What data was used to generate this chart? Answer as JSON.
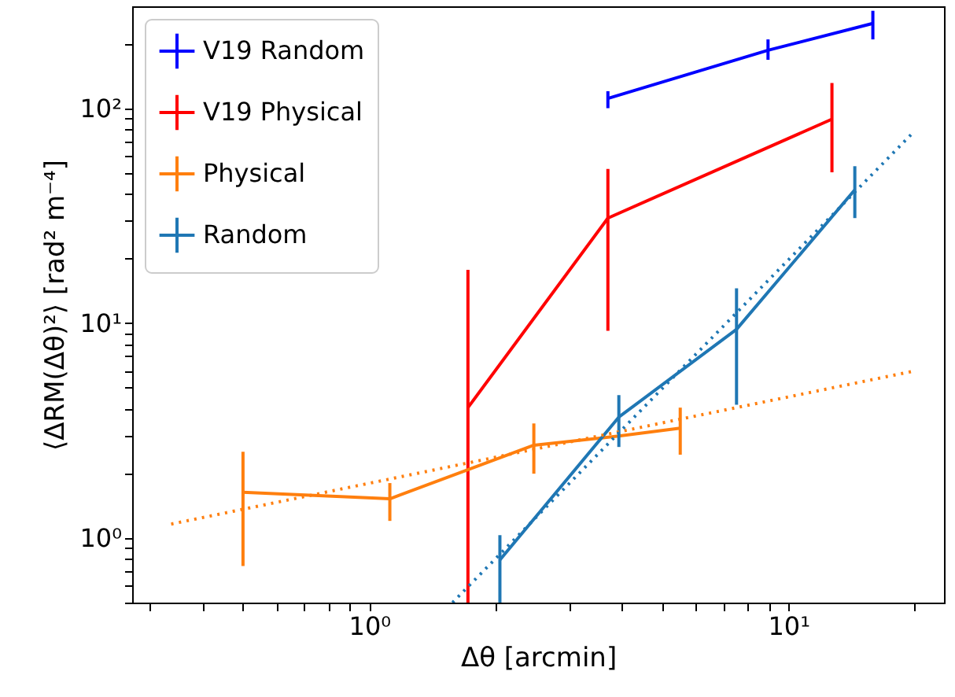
{
  "chart_data": {
    "type": "line",
    "xlabel": "Δθ [arcmin]",
    "ylabel": "⟨ΔRM(Δθ)²⟩ [rad² m⁻⁴]",
    "log": "xy",
    "grid": false,
    "legend": "top left",
    "xlim": [
      0.272,
      23.5
    ],
    "ylim": [
      0.5,
      298
    ],
    "xticks": [
      {
        "value": 0.3,
        "label": null
      },
      {
        "value": 0.4,
        "label": null
      },
      {
        "value": 0.5,
        "label": null
      },
      {
        "value": 0.6,
        "label": null
      },
      {
        "value": 0.7,
        "label": null
      },
      {
        "value": 0.8,
        "label": null
      },
      {
        "value": 0.9,
        "label": null
      },
      {
        "value": 1,
        "label": "10⁰"
      },
      {
        "value": 2,
        "label": null
      },
      {
        "value": 3,
        "label": null
      },
      {
        "value": 4,
        "label": null
      },
      {
        "value": 5,
        "label": null
      },
      {
        "value": 6,
        "label": null
      },
      {
        "value": 7,
        "label": null
      },
      {
        "value": 8,
        "label": null
      },
      {
        "value": 9,
        "label": null
      },
      {
        "value": 10,
        "label": "10¹"
      },
      {
        "value": 20,
        "label": null
      }
    ],
    "yticks": [
      {
        "value": 0.5,
        "label": null
      },
      {
        "value": 0.6,
        "label": null
      },
      {
        "value": 0.7,
        "label": null
      },
      {
        "value": 0.8,
        "label": null
      },
      {
        "value": 0.9,
        "label": null
      },
      {
        "value": 1,
        "label": "10⁰"
      },
      {
        "value": 2,
        "label": null
      },
      {
        "value": 3,
        "label": null
      },
      {
        "value": 4,
        "label": null
      },
      {
        "value": 5,
        "label": null
      },
      {
        "value": 6,
        "label": null
      },
      {
        "value": 7,
        "label": null
      },
      {
        "value": 8,
        "label": null
      },
      {
        "value": 9,
        "label": null
      },
      {
        "value": 10,
        "label": "10¹"
      },
      {
        "value": 20,
        "label": null
      },
      {
        "value": 30,
        "label": null
      },
      {
        "value": 40,
        "label": null
      },
      {
        "value": 50,
        "label": null
      },
      {
        "value": 60,
        "label": null
      },
      {
        "value": 70,
        "label": null
      },
      {
        "value": 80,
        "label": null
      },
      {
        "value": 90,
        "label": null
      },
      {
        "value": 100,
        "label": "10²"
      },
      {
        "value": 200,
        "label": null
      }
    ],
    "series": [
      {
        "name": "V19 Random",
        "color": "#0000ff",
        "x": [
          3.71,
          8.94,
          15.9
        ],
        "values": [
          111,
          186,
          248
        ],
        "errors": [
          [
            100,
            120
          ],
          [
            168,
            209
          ],
          [
            209,
            284
          ]
        ]
      },
      {
        "name": "V19 Physical",
        "color": "#ff0000",
        "x": [
          1.72,
          3.71,
          12.7
        ],
        "values": [
          4.04,
          30.8,
          88.9
        ],
        "errors": [
          [
            0.5,
            17.7
          ],
          [
            9.2,
            52.1
          ],
          [
            50.3,
            131
          ]
        ]
      },
      {
        "name": "Physical",
        "color": "#ff7f0e",
        "x": [
          0.5,
          1.12,
          2.47,
          3.94,
          5.52
        ],
        "values": [
          1.63,
          1.52,
          2.7,
          2.98,
          3.24
        ],
        "errors": [
          [
            0.74,
            2.52
          ],
          [
            1.2,
            1.8
          ],
          [
            1.99,
            3.41
          ],
          null,
          [
            2.44,
            4.04
          ]
        ]
      },
      {
        "name": "Random",
        "color": "#1f77b4",
        "x": [
          2.05,
          3.94,
          7.52,
          14.4
        ],
        "values": [
          0.79,
          3.65,
          9.35,
          41.7
        ],
        "errors": [
          [
            0.5,
            1.03
          ],
          [
            2.65,
            4.62
          ],
          [
            4.17,
            14.5
          ],
          [
            30.8,
            53.7
          ]
        ]
      },
      {
        "type": "line",
        "color": "#ff7f0e",
        "line_style": "dotted",
        "x": [
          0.337,
          19.6
        ],
        "values": [
          1.16,
          5.94
        ]
      },
      {
        "type": "line",
        "color": "#1f77b4",
        "line_style": "dotted",
        "x": [
          1.58,
          19.6
        ],
        "values": [
          0.5,
          75.2
        ]
      }
    ]
  }
}
